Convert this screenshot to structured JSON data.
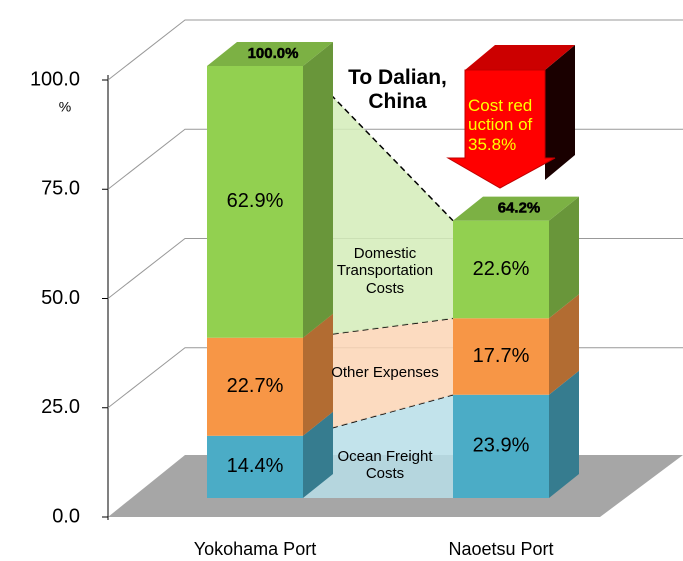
{
  "chart_data": {
    "type": "bar3d_stacked",
    "categories": [
      "Yokohama Port",
      "Naoetsu Port"
    ],
    "series": [
      {
        "name": "Ocean Freight Costs",
        "color": "#4bacc6",
        "values": [
          14.4,
          23.9
        ],
        "value_labels": [
          "14.4%",
          "23.9%"
        ]
      },
      {
        "name": "Other Expenses",
        "color": "#f79646",
        "values": [
          22.7,
          17.7
        ],
        "value_labels": [
          "22.7%",
          "17.7%"
        ]
      },
      {
        "name": "Domestic Transportation Costs",
        "color": "#92d050",
        "values": [
          62.9,
          22.6
        ],
        "value_labels": [
          "62.9%",
          "22.6%"
        ]
      }
    ],
    "totals": [
      100,
      64.2
    ],
    "total_labels": [
      "100.0%",
      "64.2%"
    ],
    "ylim": [
      0,
      100
    ],
    "yticks": [
      {
        "value": 0,
        "label": "0.0"
      },
      {
        "value": 25,
        "label": "25.0"
      },
      {
        "value": 50,
        "label": "50.0"
      },
      {
        "value": 75,
        "label": "75.0"
      },
      {
        "value": 100,
        "label": "100.0"
      }
    ],
    "y_unit": "%",
    "grid": true,
    "annotations": [
      "To Dalian, China",
      "Cost reduction of 35.8%"
    ]
  }
}
